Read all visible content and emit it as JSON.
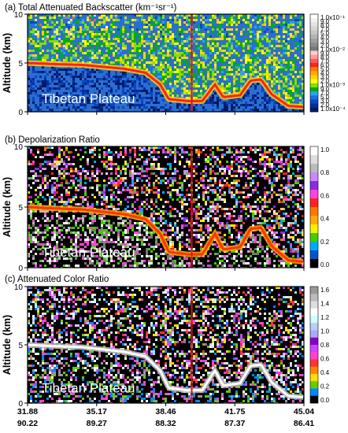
{
  "chart_data": {
    "type": "heatmap",
    "x_ticks": {
      "latitude": [
        "31.88",
        "35.17",
        "38.46",
        "41.75",
        "45.04"
      ],
      "longitude": [
        "90.22",
        "89.27",
        "88.32",
        "87.37",
        "86.41"
      ]
    },
    "y_range_km": [
      0,
      10
    ],
    "y_ticks": [
      "0",
      "5",
      "10"
    ],
    "marker_latitude": 39.7,
    "terrain_profile_km": [
      [
        31.88,
        5.0
      ],
      [
        33.0,
        4.9
      ],
      [
        34.5,
        4.8
      ],
      [
        35.5,
        4.6
      ],
      [
        36.5,
        4.4
      ],
      [
        37.5,
        4.0
      ],
      [
        38.2,
        2.8
      ],
      [
        38.6,
        1.3
      ],
      [
        39.5,
        1.1
      ],
      [
        40.2,
        1.1
      ],
      [
        40.8,
        2.8
      ],
      [
        41.2,
        1.5
      ],
      [
        42.0,
        1.7
      ],
      [
        42.5,
        3.2
      ],
      [
        43.0,
        3.3
      ],
      [
        43.5,
        1.8
      ],
      [
        44.3,
        0.6
      ],
      [
        45.04,
        0.5
      ]
    ],
    "panels": [
      {
        "title": "(a) Total Attenuated Backscatter (km⁻¹sr⁻¹)",
        "ylabel": "Altitude (km)",
        "annotation": "Tibetan Plateau",
        "colorbar": [
          "1.0x10⁻¹",
          "9.0",
          "8.0",
          "7.0",
          "5.0",
          "4.0",
          "3.0",
          "2.0",
          "1.0x10⁻²",
          "9.0",
          "8.0",
          "7.0",
          "6.0",
          "5.0",
          "4.0",
          "3.0",
          "2.0",
          "1.0x10⁻³",
          "9.0",
          "7.0",
          "5.0",
          "3.0",
          "2.0",
          "1.0x10⁻⁴"
        ],
        "colorbar_colors": [
          "#ffffff",
          "#f2f2f2",
          "#e4e4e4",
          "#d6d6d6",
          "#c6c6c6",
          "#b4b4b4",
          "#a0a0a0",
          "#8c8c8c",
          "#787878",
          "#ffcccc",
          "#ff9a9a",
          "#ff5a5a",
          "#ff2222",
          "#ff7a00",
          "#ffaa00",
          "#ffd400",
          "#ffff00",
          "#88dd00",
          "#00b000",
          "#2da0ff",
          "#1a70e0",
          "#0a48c0",
          "#082c9a",
          "#001a66"
        ]
      },
      {
        "title": "(b) Depolarization Ratio",
        "ylabel": "Altitude (km)",
        "annotation": "Tibetan Plateau",
        "colorbar": [
          "1.0",
          "0.8",
          "0.6",
          "0.4",
          "0.2",
          "0.0"
        ],
        "colorbar_colors": [
          "#ffffff",
          "#dddddd",
          "#bbbbbb",
          "#cc88ff",
          "#8a2be2",
          "#ff44dd",
          "#ff2222",
          "#ff7700",
          "#ffaa00",
          "#ffee00",
          "#44cc00",
          "#00aaff",
          "#0055cc",
          "#000000"
        ]
      },
      {
        "title": "(c) Attenuated Color Ratio",
        "ylabel": "Altitude (km)",
        "annotation": "Tibetan Plateau",
        "colorbar": [
          "1.6",
          "1.4",
          "1.2",
          "1.0",
          "0.8",
          "0.6",
          "0.4",
          "0.2",
          "0.0"
        ],
        "colorbar_colors": [
          "#999999",
          "#bbbbbb",
          "#dddddd",
          "#ffffff",
          "#ccffff",
          "#bbccff",
          "#aaaaff",
          "#8800cc",
          "#cc44ff",
          "#ff44cc",
          "#ff3333",
          "#ff8800",
          "#ffdd00",
          "#66cc00",
          "#0088ff",
          "#000000"
        ]
      }
    ]
  }
}
